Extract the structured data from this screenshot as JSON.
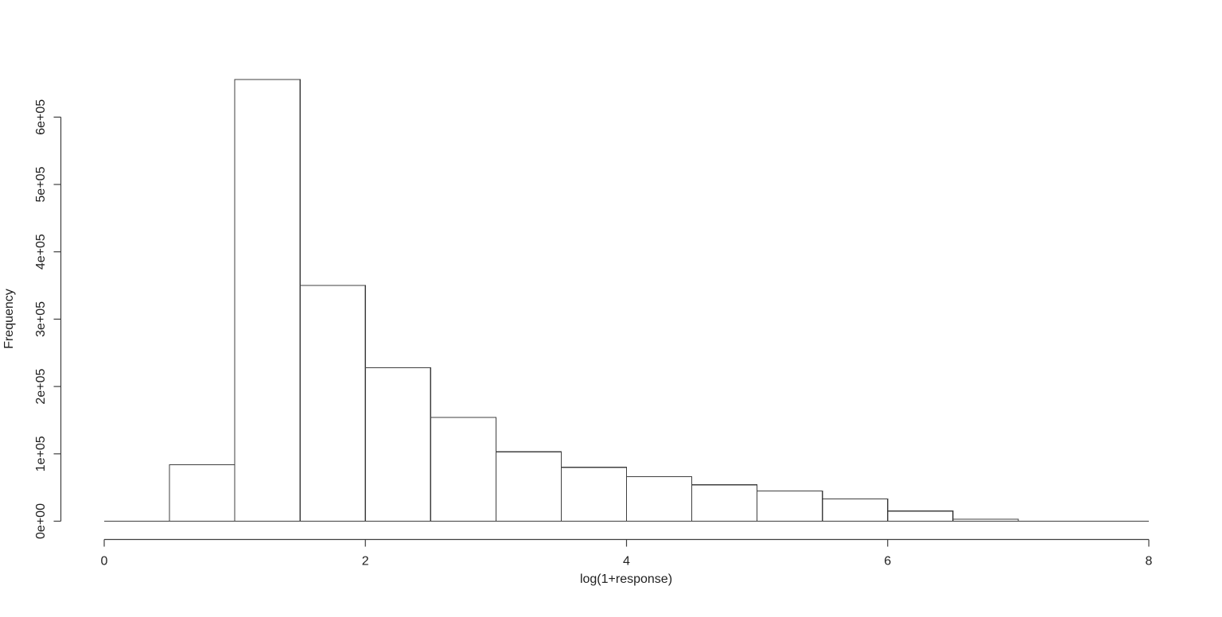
{
  "chart_data": {
    "type": "bar",
    "subtype": "histogram",
    "title": "",
    "xlabel": "log(1+response)",
    "ylabel": "Frequency",
    "xlim": [
      0,
      8
    ],
    "ylim": [
      0,
      600000
    ],
    "x_ticks": [
      0,
      2,
      4,
      6,
      8
    ],
    "y_ticks": [
      {
        "value": 0,
        "label": "0e+00"
      },
      {
        "value": 100000,
        "label": "1e+05"
      },
      {
        "value": 200000,
        "label": "2e+05"
      },
      {
        "value": 300000,
        "label": "3e+05"
      },
      {
        "value": 400000,
        "label": "4e+05"
      },
      {
        "value": 500000,
        "label": "5e+05"
      },
      {
        "value": 600000,
        "label": "6e+05"
      }
    ],
    "bin_width": 0.5,
    "bins": [
      {
        "x0": 0.0,
        "x1": 0.5,
        "count": 0
      },
      {
        "x0": 0.5,
        "x1": 1.0,
        "count": 84000
      },
      {
        "x0": 1.0,
        "x1": 1.5,
        "count": 656000
      },
      {
        "x0": 1.5,
        "x1": 2.0,
        "count": 350000
      },
      {
        "x0": 2.0,
        "x1": 2.5,
        "count": 228000
      },
      {
        "x0": 2.5,
        "x1": 3.0,
        "count": 154000
      },
      {
        "x0": 3.0,
        "x1": 3.5,
        "count": 103000
      },
      {
        "x0": 3.5,
        "x1": 4.0,
        "count": 80000
      },
      {
        "x0": 4.0,
        "x1": 4.5,
        "count": 66000
      },
      {
        "x0": 4.5,
        "x1": 5.0,
        "count": 54000
      },
      {
        "x0": 5.0,
        "x1": 5.5,
        "count": 45000
      },
      {
        "x0": 5.5,
        "x1": 6.0,
        "count": 33000
      },
      {
        "x0": 6.0,
        "x1": 6.5,
        "count": 15000
      },
      {
        "x0": 6.5,
        "x1": 7.0,
        "count": 3000
      },
      {
        "x0": 7.0,
        "x1": 7.5,
        "count": 600
      },
      {
        "x0": 7.5,
        "x1": 8.0,
        "count": 250
      }
    ],
    "grid": false,
    "legend": "none",
    "colors": {
      "background": "#ffffff",
      "bar_fill": "#ffffff",
      "bar_stroke": "#3f3f3f",
      "axis": "#3f3f3f",
      "text": "#1f1f1f"
    }
  }
}
